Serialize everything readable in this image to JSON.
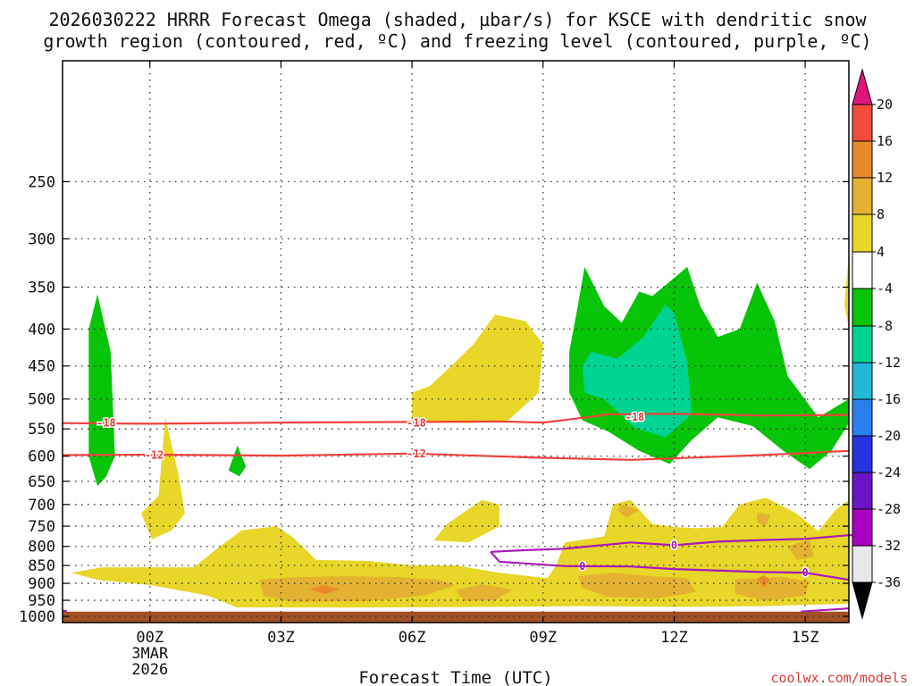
{
  "chart_data": {
    "type": "time-height cross section",
    "title_line1": "2026030222 HRRR Forecast Omega (shaded, µbar/s) for KSCE with dendritic snow",
    "title_line2": "growth region (contoured, red, ºC) and freezing level (contoured, purple, ºC)",
    "xlabel": "Forecast Time (UTC)",
    "credit": "coolwx.com/models",
    "x_range_hours": [
      -2,
      16
    ],
    "y_range_hpa": [
      1020,
      170
    ],
    "x_ticks": [
      {
        "hour": 0,
        "label": "00Z",
        "sub1": "3MAR",
        "sub2": "2026"
      },
      {
        "hour": 3,
        "label": "03Z"
      },
      {
        "hour": 6,
        "label": "06Z"
      },
      {
        "hour": 9,
        "label": "09Z"
      },
      {
        "hour": 12,
        "label": "12Z"
      },
      {
        "hour": 15,
        "label": "15Z"
      }
    ],
    "y_ticks": [
      250,
      300,
      350,
      400,
      450,
      500,
      550,
      600,
      650,
      700,
      750,
      800,
      850,
      900,
      950,
      1000
    ],
    "colorbar": {
      "labels": [
        "20",
        "16",
        "12",
        "8",
        "4",
        "-4",
        "-8",
        "-12",
        "-16",
        "-20",
        "-24",
        "-28",
        "-32",
        "-36"
      ],
      "bins": [
        {
          "color": "#e8e8e8",
          "from": -36,
          "to": -32
        },
        {
          "color": "#aa00c0",
          "from": -32,
          "to": -28
        },
        {
          "color": "#6a14c8",
          "from": -28,
          "to": -24
        },
        {
          "color": "#2833e0",
          "from": -24,
          "to": -20
        },
        {
          "color": "#2a7fee",
          "from": -20,
          "to": -16
        },
        {
          "color": "#24b8d8",
          "from": -16,
          "to": -12
        },
        {
          "color": "#00d493",
          "from": -12,
          "to": -8
        },
        {
          "color": "#08c408",
          "from": -8,
          "to": -4
        },
        {
          "color": "#ffffff",
          "from": -4,
          "to": 4
        },
        {
          "color": "#e8d628",
          "from": 4,
          "to": 8
        },
        {
          "color": "#e3b230",
          "from": 8,
          "to": 12
        },
        {
          "color": "#e88a2a",
          "from": 12,
          "to": 16
        },
        {
          "color": "#f24d3b",
          "from": 16,
          "to": 20
        }
      ],
      "over_color": "#e0157d",
      "under_color": "#000000"
    },
    "red_contours": [
      {
        "label": "-18",
        "label_positions": [
          [
            -1.0,
            540
          ],
          [
            6.1,
            540
          ],
          [
            11.1,
            530
          ]
        ],
        "points": [
          [
            -2,
            540
          ],
          [
            0,
            541
          ],
          [
            3,
            539
          ],
          [
            6,
            538
          ],
          [
            8,
            537
          ],
          [
            9,
            539
          ],
          [
            10,
            530
          ],
          [
            10.5,
            525
          ],
          [
            12,
            524
          ],
          [
            14,
            527
          ],
          [
            16,
            526
          ]
        ]
      },
      {
        "label": "-12",
        "label_positions": [
          [
            0.1,
            598
          ],
          [
            6.1,
            595
          ]
        ],
        "points": [
          [
            -2,
            598
          ],
          [
            0,
            597
          ],
          [
            3,
            599
          ],
          [
            6,
            595
          ],
          [
            9,
            603
          ],
          [
            11,
            607
          ],
          [
            12,
            604
          ],
          [
            14,
            598
          ],
          [
            16,
            590
          ]
        ]
      }
    ],
    "purple_contours": [
      {
        "label": "0",
        "label_positions": [
          [
            12.0,
            797
          ],
          [
            9.9,
            853
          ],
          [
            15.0,
            870
          ]
        ],
        "points": [
          [
            7.8,
            814
          ],
          [
            8.5,
            810
          ],
          [
            9.5,
            806
          ],
          [
            11,
            790
          ],
          [
            12,
            797
          ],
          [
            13,
            788
          ],
          [
            14,
            784
          ],
          [
            15,
            781
          ],
          [
            16,
            772
          ],
          [
            16.2,
            772
          ]
        ]
      },
      {
        "label": "0",
        "label_positions": [],
        "points": [
          [
            7.8,
            814
          ],
          [
            8.0,
            840
          ],
          [
            9.5,
            852
          ],
          [
            11,
            853
          ],
          [
            12,
            860
          ],
          [
            14,
            868
          ],
          [
            15,
            870
          ],
          [
            16,
            890
          ]
        ]
      },
      {
        "label": "",
        "label_positions": [],
        "points": [
          [
            -2,
            982
          ],
          [
            -1.9,
            984
          ]
        ]
      },
      {
        "label": "",
        "label_positions": [],
        "points": [
          [
            14.9,
            985
          ],
          [
            16,
            975
          ]
        ]
      }
    ],
    "omega_regions": [
      {
        "category": "-4 to -8",
        "color": "#08c408",
        "points": [
          [
            -1.2,
            660
          ],
          [
            -1.4,
            600
          ],
          [
            -1.4,
            400
          ],
          [
            -1.2,
            358
          ],
          [
            -0.9,
            430
          ],
          [
            -0.8,
            600
          ],
          [
            -1.0,
            640
          ]
        ]
      },
      {
        "category": "-4 to -8",
        "color": "#08c408",
        "points": [
          [
            2.0,
            580
          ],
          [
            2.2,
            620
          ],
          [
            2.05,
            640
          ],
          [
            1.8,
            628
          ]
        ]
      },
      {
        "category": "-4 to -8",
        "color": "#08c408",
        "points": [
          [
            9.6,
            490
          ],
          [
            9.6,
            430
          ],
          [
            9.8,
            370
          ],
          [
            9.95,
            328
          ],
          [
            10.4,
            372
          ],
          [
            10.8,
            392
          ],
          [
            11.2,
            355
          ],
          [
            11.5,
            360
          ],
          [
            12,
            340
          ],
          [
            12.3,
            328
          ],
          [
            12.6,
            372
          ],
          [
            13.0,
            410
          ],
          [
            13.5,
            400
          ],
          [
            13.9,
            345
          ],
          [
            14.3,
            390
          ],
          [
            14.6,
            465
          ],
          [
            15.3,
            530
          ],
          [
            16,
            500
          ],
          [
            16,
            540
          ],
          [
            15.6,
            590
          ],
          [
            15.1,
            625
          ],
          [
            14.5,
            590
          ],
          [
            13.8,
            545
          ],
          [
            13.0,
            530
          ],
          [
            12.4,
            570
          ],
          [
            11.9,
            615
          ],
          [
            11.2,
            590
          ],
          [
            10.5,
            555
          ],
          [
            9.9,
            535
          ]
        ]
      },
      {
        "category": "-8 to -12",
        "color": "#00d493",
        "points": [
          [
            9.9,
            450
          ],
          [
            10.1,
            430
          ],
          [
            10.7,
            440
          ],
          [
            11.3,
            410
          ],
          [
            11.8,
            370
          ],
          [
            12.0,
            380
          ],
          [
            12.3,
            445
          ],
          [
            12.4,
            525
          ],
          [
            11.8,
            565
          ],
          [
            11.1,
            548
          ],
          [
            10.4,
            500
          ],
          [
            9.95,
            490
          ]
        ]
      },
      {
        "category": "4 to 8",
        "color": "#e8d628",
        "points": [
          [
            0.2,
            680
          ],
          [
            0.35,
            530
          ],
          [
            0.65,
            635
          ],
          [
            0.8,
            720
          ],
          [
            0.5,
            760
          ],
          [
            0.05,
            782
          ],
          [
            -0.2,
            720
          ]
        ]
      },
      {
        "category": "4 to 8",
        "color": "#e8d628",
        "points": [
          [
            6.0,
            535
          ],
          [
            6.0,
            490
          ],
          [
            6.4,
            480
          ],
          [
            6.9,
            450
          ],
          [
            7.4,
            420
          ],
          [
            7.9,
            382
          ],
          [
            8.6,
            390
          ],
          [
            9.0,
            420
          ],
          [
            8.9,
            490
          ],
          [
            8.2,
            535
          ],
          [
            7.3,
            540
          ]
        ]
      },
      {
        "category": "4 to 8",
        "color": "#e8d628",
        "points": [
          [
            8.0,
            750
          ],
          [
            8.0,
            700
          ],
          [
            7.6,
            690
          ],
          [
            6.8,
            745
          ],
          [
            6.5,
            785
          ],
          [
            7.3,
            790
          ]
        ]
      },
      {
        "category": "4 to 8",
        "color": "#e8d628",
        "points": [
          [
            -1.8,
            870
          ],
          [
            -1.1,
            855
          ],
          [
            1.0,
            855
          ],
          [
            1.3,
            828
          ],
          [
            1.6,
            800
          ],
          [
            2.1,
            760
          ],
          [
            2.9,
            750
          ],
          [
            3.3,
            780
          ],
          [
            3.8,
            835
          ],
          [
            5.0,
            838
          ],
          [
            6.0,
            850
          ],
          [
            7.0,
            850
          ],
          [
            8.0,
            870
          ],
          [
            9.1,
            885
          ],
          [
            9.3,
            850
          ],
          [
            9.5,
            790
          ],
          [
            10.4,
            775
          ],
          [
            10.6,
            700
          ],
          [
            11.0,
            690
          ],
          [
            11.5,
            745
          ],
          [
            12.0,
            752
          ],
          [
            12.5,
            755
          ],
          [
            13.1,
            752
          ],
          [
            13.5,
            700
          ],
          [
            14.1,
            685
          ],
          [
            14.8,
            720
          ],
          [
            15.3,
            762
          ],
          [
            15.7,
            712
          ],
          [
            16.0,
            690
          ],
          [
            16.0,
            960
          ],
          [
            14.0,
            968
          ],
          [
            12.0,
            970
          ],
          [
            10.0,
            968
          ],
          [
            8.0,
            970
          ],
          [
            5.0,
            972
          ],
          [
            2.0,
            972
          ],
          [
            1.3,
            935
          ],
          [
            0.0,
            905
          ],
          [
            -1.2,
            890
          ]
        ]
      },
      {
        "category": "4 to 8",
        "color": "#e8d628",
        "points": [
          [
            15.9,
            370
          ],
          [
            16.0,
            315
          ],
          [
            16.0,
            400
          ]
        ]
      },
      {
        "category": "8 to 12",
        "color": "#e3b230",
        "points": [
          [
            2.5,
            890
          ],
          [
            3.2,
            883
          ],
          [
            4.5,
            880
          ],
          [
            5.7,
            882
          ],
          [
            6.6,
            890
          ],
          [
            7.0,
            905
          ],
          [
            6.3,
            935
          ],
          [
            5.0,
            953
          ],
          [
            3.3,
            955
          ],
          [
            2.6,
            937
          ]
        ]
      },
      {
        "category": "8 to 12",
        "color": "#e3b230",
        "points": [
          [
            7.0,
            920
          ],
          [
            7.6,
            903
          ],
          [
            8.3,
            918
          ],
          [
            7.9,
            950
          ],
          [
            7.2,
            952
          ]
        ]
      },
      {
        "category": "8 to 12",
        "color": "#e3b230",
        "points": [
          [
            9.8,
            880
          ],
          [
            10.6,
            870
          ],
          [
            11.5,
            880
          ],
          [
            12.3,
            885
          ],
          [
            12.5,
            925
          ],
          [
            11.6,
            945
          ],
          [
            10.5,
            940
          ],
          [
            9.9,
            913
          ]
        ]
      },
      {
        "category": "8 to 12",
        "color": "#e3b230",
        "points": [
          [
            13.4,
            888
          ],
          [
            14.5,
            882
          ],
          [
            15.1,
            895
          ],
          [
            15.0,
            935
          ],
          [
            14.1,
            952
          ],
          [
            13.4,
            930
          ]
        ]
      },
      {
        "category": "8 to 12",
        "color": "#e3b230",
        "points": [
          [
            14.6,
            800
          ],
          [
            15.1,
            782
          ],
          [
            15.2,
            828
          ],
          [
            14.8,
            835
          ]
        ]
      },
      {
        "category": "8 to 12",
        "color": "#e3b230",
        "points": [
          [
            10.8,
            700
          ],
          [
            11.2,
            713
          ],
          [
            10.9,
            730
          ],
          [
            10.7,
            712
          ]
        ]
      },
      {
        "category": "8 to 12",
        "color": "#e3b230",
        "points": [
          [
            13.9,
            718
          ],
          [
            14.2,
            724
          ],
          [
            14.1,
            750
          ],
          [
            13.9,
            742
          ]
        ]
      },
      {
        "category": "12 to 16",
        "color": "#e88a2a",
        "points": [
          [
            3.65,
            917
          ],
          [
            4.0,
            905
          ],
          [
            4.35,
            917
          ],
          [
            4.0,
            932
          ]
        ]
      },
      {
        "category": "12 to 16",
        "color": "#e88a2a",
        "points": [
          [
            13.9,
            888
          ],
          [
            14.05,
            877
          ],
          [
            14.2,
            890
          ],
          [
            14.05,
            912
          ]
        ]
      }
    ],
    "ground_color": "#a35024",
    "ground_top_hpa": 985
  }
}
